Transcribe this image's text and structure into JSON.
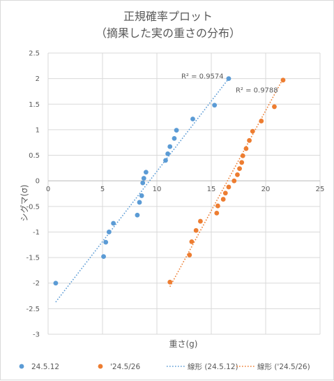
{
  "chart_data": {
    "type": "scatter",
    "title": [
      "正規確率プロット",
      "（摘果した実の重さの分布）"
    ],
    "xlabel": "重さ(g)",
    "ylabel": "シグマ(σ)",
    "xlim": [
      0,
      25
    ],
    "ylim": [
      -3,
      2.5
    ],
    "xticks": [
      "0",
      "5",
      "10",
      "15",
      "20",
      "25"
    ],
    "yticks": [
      "2.5",
      "2",
      "1.5",
      "1",
      "0.5",
      "0",
      "-0.5",
      "-1",
      "-1.5",
      "-2",
      "-2.5",
      "-3"
    ],
    "grid": true,
    "legend_position": "bottom",
    "series": [
      {
        "name": "24.5.12",
        "color": "#5b9bd5",
        "points": [
          [
            0.7,
            -2.0
          ],
          [
            5.1,
            -1.48
          ],
          [
            5.3,
            -1.2
          ],
          [
            5.6,
            -1.0
          ],
          [
            6.0,
            -0.83
          ],
          [
            8.2,
            -0.67
          ],
          [
            8.4,
            -0.42
          ],
          [
            8.6,
            -0.29
          ],
          [
            8.7,
            -0.04
          ],
          [
            8.8,
            0.05
          ],
          [
            9.0,
            0.17
          ],
          [
            10.8,
            0.4
          ],
          [
            11.0,
            0.53
          ],
          [
            11.2,
            0.67
          ],
          [
            11.6,
            0.83
          ],
          [
            11.8,
            0.99
          ],
          [
            13.3,
            1.21
          ],
          [
            15.3,
            1.48
          ],
          [
            16.6,
            2.0
          ]
        ],
        "trendline": {
          "name": "線形 (24.5.12)",
          "x": [
            0.7,
            16.6
          ],
          "y": [
            -2.37,
            2.0
          ],
          "r2": "R² = 0.9574"
        }
      },
      {
        "name": "'24.5/26",
        "color": "#ed7d31",
        "points": [
          [
            11.2,
            -1.98
          ],
          [
            13.0,
            -1.45
          ],
          [
            13.2,
            -1.19
          ],
          [
            13.6,
            -0.97
          ],
          [
            14.0,
            -0.79
          ],
          [
            15.5,
            -0.63
          ],
          [
            15.6,
            -0.49
          ],
          [
            16.1,
            -0.36
          ],
          [
            16.3,
            -0.24
          ],
          [
            16.6,
            -0.12
          ],
          [
            17.1,
            0.0
          ],
          [
            17.4,
            0.12
          ],
          [
            17.6,
            0.24
          ],
          [
            17.8,
            0.36
          ],
          [
            17.9,
            0.49
          ],
          [
            18.2,
            0.63
          ],
          [
            18.5,
            0.79
          ],
          [
            18.8,
            0.97
          ],
          [
            19.6,
            1.17
          ],
          [
            20.8,
            1.45
          ],
          [
            21.6,
            1.97
          ]
        ],
        "trendline": {
          "name": "線形 ('24.5/26)",
          "x": [
            11.2,
            21.6
          ],
          "y": [
            -2.07,
            2.0
          ],
          "r2": "R² = 0.9788"
        }
      }
    ]
  }
}
